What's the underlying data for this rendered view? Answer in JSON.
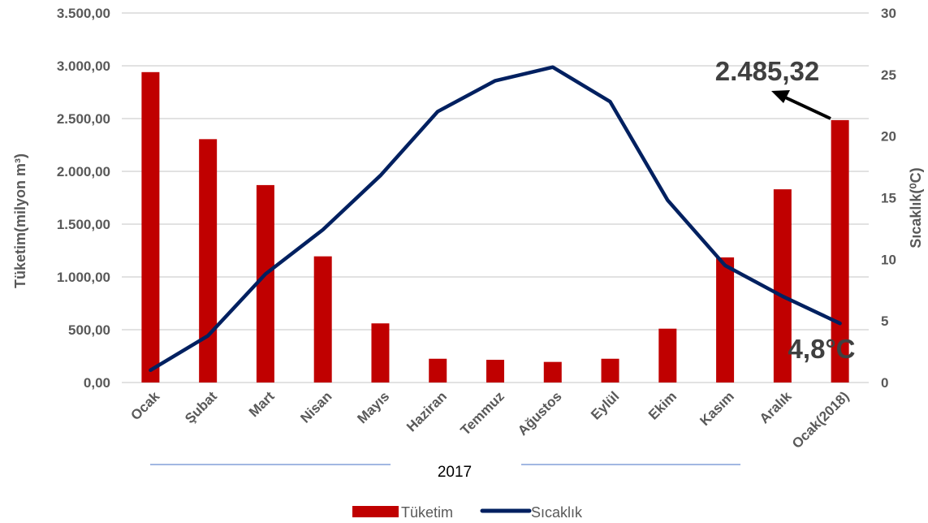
{
  "chart_data": {
    "type": "bar",
    "categories": [
      "Ocak",
      "Şubat",
      "Mart",
      "Nisan",
      "Mayıs",
      "Haziran",
      "Temmuz",
      "Ağustos",
      "Eylül",
      "Ekim",
      "Kasım",
      "Aralık",
      "Ocak(2018)"
    ],
    "series": [
      {
        "name": "Tüketim",
        "type": "bar",
        "axis": "left",
        "color": "#C00000",
        "values": [
          2940,
          2305,
          1870,
          1195,
          560,
          225,
          215,
          195,
          225,
          510,
          1185,
          1830,
          2485.32
        ]
      },
      {
        "name": "Sıcaklık",
        "type": "line",
        "axis": "right",
        "color": "#002060",
        "values": [
          1.0,
          3.8,
          8.8,
          12.4,
          16.8,
          22.0,
          24.5,
          25.6,
          22.8,
          14.8,
          9.5,
          7.0,
          4.8
        ]
      }
    ],
    "ylabel": "Tüketim(milyon m³)",
    "y2label": "Sıcaklık(⁰C)",
    "xlabel": "2017",
    "ylim": [
      0,
      3500
    ],
    "y2lim": [
      0,
      30
    ],
    "yticks": [
      "0,00",
      "500,00",
      "1.000,00",
      "1.500,00",
      "2.000,00",
      "2.500,00",
      "3.000,00",
      "3.500,00"
    ],
    "y2ticks": [
      "0",
      "5",
      "10",
      "15",
      "20",
      "25",
      "30"
    ],
    "annotations": [
      "2.485,32",
      "4,8°C"
    ],
    "legend_position": "bottom",
    "grid": true
  }
}
